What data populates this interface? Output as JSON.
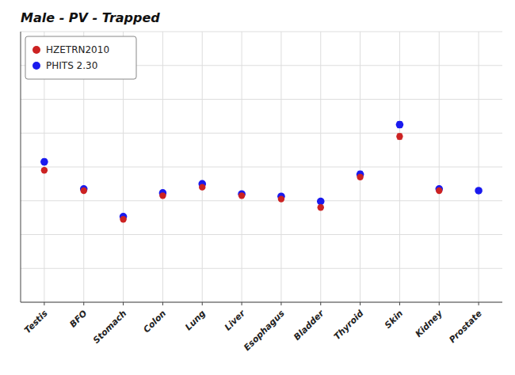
{
  "chart_data": {
    "type": "scatter",
    "title": "Male - PV - Trapped",
    "categories": [
      "Testis",
      "BFO",
      "Stomach",
      "Colon",
      "Lung",
      "Liver",
      "Esophagus",
      "Bladder",
      "Thyroid",
      "Skin",
      "Kidney",
      "Prostate"
    ],
    "series": [
      {
        "name": "HZETRN2010",
        "color": "#cc2222",
        "marker": "circle",
        "values": [
          0.39,
          0.33,
          0.245,
          0.315,
          0.34,
          0.315,
          0.305,
          0.28,
          0.37,
          0.49,
          0.33,
          null
        ],
        "errors": [
          0.005,
          0.005,
          0.004,
          0.004,
          0.004,
          0.004,
          0.004,
          0.004,
          0.005,
          0.008,
          0.004,
          null
        ]
      },
      {
        "name": "PHITS 2.30",
        "color": "#1a1aee",
        "marker": "circle",
        "values": [
          0.415,
          0.335,
          0.253,
          0.323,
          0.35,
          0.32,
          0.313,
          0.298,
          0.378,
          0.525,
          0.335,
          0.33
        ],
        "errors": [
          0.008,
          0.005,
          0.005,
          0.005,
          0.006,
          0.005,
          0.005,
          0.005,
          0.009,
          0.009,
          0.005,
          0.005
        ]
      }
    ],
    "ylim": [
      0.0,
      0.8
    ],
    "yticks": [
      0.0,
      0.1,
      0.2,
      0.3,
      0.4,
      0.5,
      0.6,
      0.7,
      0.8
    ],
    "grid": true,
    "legend": "upper left",
    "tick_labels": "x"
  }
}
